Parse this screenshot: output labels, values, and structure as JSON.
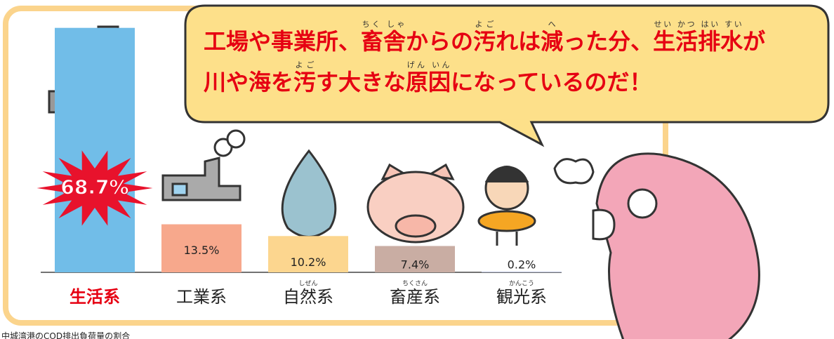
{
  "chart_data": {
    "type": "bar",
    "categories": [
      "生活系",
      "工業系",
      "自然系",
      "畜産系",
      "観光系"
    ],
    "category_readings": [
      null,
      null,
      "しぜん",
      "ちくさん",
      "かんこう"
    ],
    "values": [
      68.7,
      13.5,
      10.2,
      7.4,
      0.2
    ],
    "value_labels": [
      "68.7%",
      "13.5%",
      "10.2%",
      "7.4%",
      "0.2%"
    ],
    "colors": [
      "#71bde8",
      "#f7a88c",
      "#fcd68f",
      "#c9ada3",
      "#b9c0dd"
    ],
    "label_colors": [
      "#e60012",
      "#222222",
      "#222222",
      "#222222",
      "#222222"
    ],
    "speech": [
      [
        {
          "text": "工場や事業所、"
        },
        {
          "text": "畜舎",
          "ruby": "ちく しゃ"
        },
        {
          "text": "からの"
        },
        {
          "text": "汚",
          "ruby": "よご"
        },
        {
          "text": "れは"
        },
        {
          "text": "減",
          "ruby": "へ"
        },
        {
          "text": "った分、"
        },
        {
          "text": "生活排水",
          "ruby": "せい かつ はい すい"
        },
        {
          "text": "が"
        }
      ],
      [
        {
          "text": "川や海を"
        },
        {
          "text": "汚",
          "ruby": "よご"
        },
        {
          "text": "す大きな"
        },
        {
          "text": "原因",
          "ruby": "げん いん"
        },
        {
          "text": "になっているのだ！"
        }
      ]
    ],
    "caption": "中城湾港のCOD排出負荷量の割合"
  }
}
